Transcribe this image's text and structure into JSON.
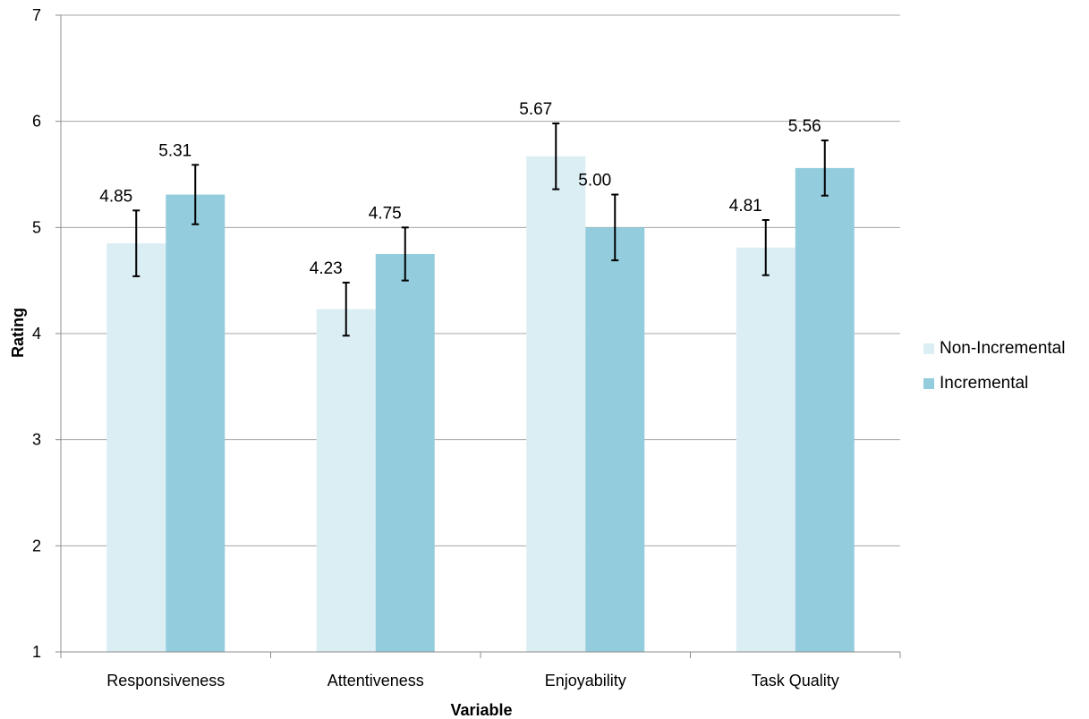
{
  "chart_data": {
    "type": "bar",
    "xlabel": "Variable",
    "ylabel": "Rating",
    "ylim": [
      1,
      7
    ],
    "yticks": [
      1,
      2,
      3,
      4,
      5,
      6,
      7
    ],
    "grid": true,
    "legend_position": "right",
    "categories": [
      "Responsiveness",
      "Attentiveness",
      "Enjoyability",
      "Task Quality"
    ],
    "series": [
      {
        "name": "Non-Incremental",
        "color": "#dbeef4",
        "values": [
          4.85,
          4.23,
          5.67,
          4.81
        ],
        "labels": [
          "4.85",
          "4.23",
          "5.67",
          "4.81"
        ],
        "error": [
          0.31,
          0.25,
          0.31,
          0.26
        ]
      },
      {
        "name": "Incremental",
        "color": "#93cddd",
        "values": [
          5.31,
          4.75,
          5.0,
          5.56
        ],
        "labels": [
          "5.31",
          "4.75",
          "5.00",
          "5.56"
        ],
        "error": [
          0.28,
          0.25,
          0.31,
          0.26
        ]
      }
    ]
  }
}
